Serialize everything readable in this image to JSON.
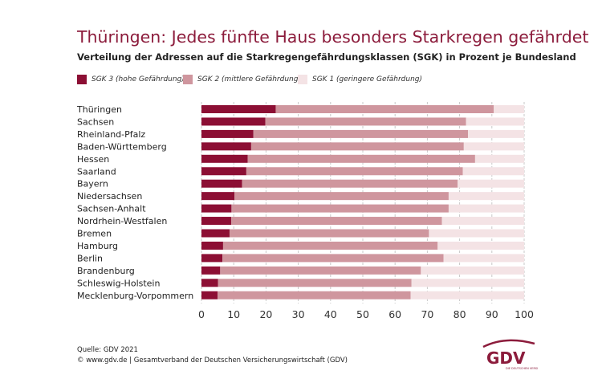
{
  "chart_data": {
    "type": "bar",
    "orientation": "horizontal",
    "stacked": true,
    "title": "Thüringen: Jedes fünfte Haus besonders Starkregen gefährdet",
    "subtitle": "Verteilung der Adressen auf die Starkregengefährdungsklassen (SGK) in Prozent je Bundesland",
    "categories": [
      "Thüringen",
      "Sachsen",
      "Rheinland-Pfalz",
      "Baden-Württemberg",
      "Hessen",
      "Saarland",
      "Bayern",
      "Niedersachsen",
      "Sachsen-Anhalt",
      "Nordrhein-Westfalen",
      "Bremen",
      "Hamburg",
      "Berlin",
      "Brandenburg",
      "Schleswig-Holstein",
      "Mecklenburg-Vorpommern"
    ],
    "series": [
      {
        "name": "SGK 3 (hohe Gefährdung)",
        "color": "#8c0f34",
        "values": [
          23.0,
          19.8,
          16.1,
          15.4,
          14.3,
          13.9,
          12.6,
          10.2,
          9.3,
          9.2,
          8.7,
          6.7,
          6.5,
          5.8,
          5.1,
          5.0
        ]
      },
      {
        "name": "SGK 2 (mittlere Gefährdung)",
        "color": "#cf969e",
        "values": [
          67.6,
          62.2,
          66.5,
          65.9,
          70.5,
          67.1,
          66.8,
          66.4,
          67.3,
          65.3,
          61.8,
          66.5,
          68.5,
          62.2,
          60.0,
          59.8
        ]
      },
      {
        "name": "SGK 1 (geringere Gefährdung)",
        "color": "#f4e3e5",
        "values": [
          9.4,
          18.0,
          17.4,
          18.7,
          15.2,
          19.0,
          20.6,
          23.4,
          23.4,
          25.5,
          29.5,
          26.8,
          25.0,
          32.0,
          34.9,
          35.2
        ]
      }
    ],
    "xlim": [
      0,
      100
    ],
    "xticks": [
      "0",
      "10",
      "20",
      "30",
      "40",
      "50",
      "60",
      "70",
      "80",
      "90",
      "100"
    ],
    "grid": "vertical dashed",
    "legend": "top"
  },
  "footer": {
    "source": "Quelle: GDV 2021",
    "copyright": "© www.gdv.de | Gesamtverband der Deutschen Versicherungswirtschaft (GDV)"
  },
  "logo": {
    "text": "GDV",
    "tagline": "DIE DEUTSCHEN VERSICHERER",
    "color": "#8c1c3c"
  }
}
